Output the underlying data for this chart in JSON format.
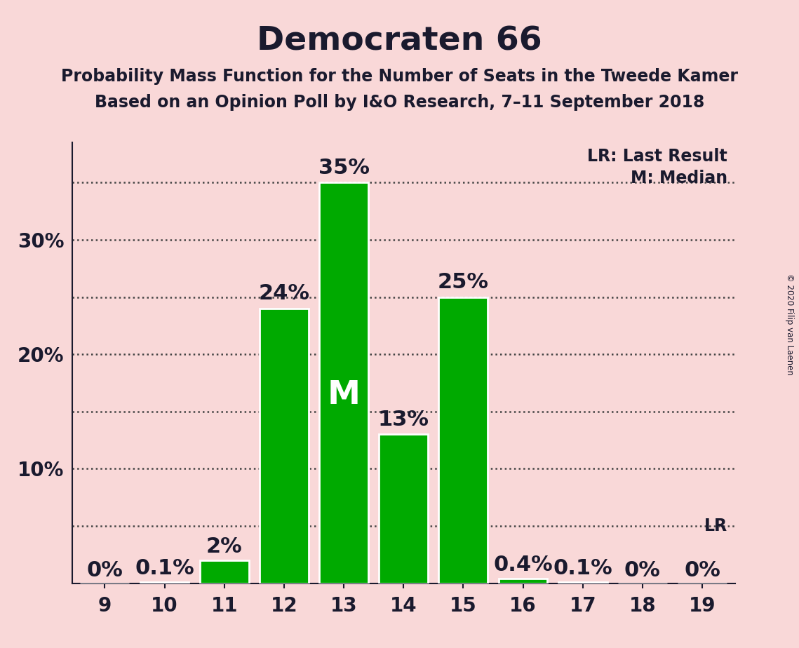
{
  "title": "Democraten 66",
  "subtitle1": "Probability Mass Function for the Number of Seats in the Tweede Kamer",
  "subtitle2": "Based on an Opinion Poll by I&O Research, 7–11 September 2018",
  "copyright": "© 2020 Filip van Laenen",
  "seats": [
    9,
    10,
    11,
    12,
    13,
    14,
    15,
    16,
    17,
    18,
    19
  ],
  "probabilities": [
    0.0,
    0.1,
    2.0,
    24.0,
    35.0,
    13.0,
    25.0,
    0.4,
    0.1,
    0.0,
    0.0
  ],
  "prob_labels": [
    "0%",
    "0.1%",
    "2%",
    "24%",
    "35%",
    "13%",
    "25%",
    "0.4%",
    "0.1%",
    "0%",
    "0%"
  ],
  "bar_color": "#00aa00",
  "bar_edge_color": "#ffffff",
  "background_color": "#f9d8d8",
  "median_seat": 13,
  "median_label": "M",
  "lr_value": 5.0,
  "lr_label": "LR",
  "legend_lr": "LR: Last Result",
  "legend_m": "M: Median",
  "ylim": [
    0,
    38.5
  ],
  "yticks": [
    10,
    20,
    30
  ],
  "ytick_labels": [
    "10%",
    "20%",
    "30%"
  ],
  "dotted_lines": [
    5,
    10,
    15,
    20,
    25,
    30,
    35
  ],
  "title_fontsize": 34,
  "subtitle_fontsize": 17,
  "tick_fontsize": 20,
  "bar_label_fontsize": 22,
  "legend_fontsize": 17,
  "dotted_line_color": "#444444",
  "text_color": "#1a1a2e"
}
